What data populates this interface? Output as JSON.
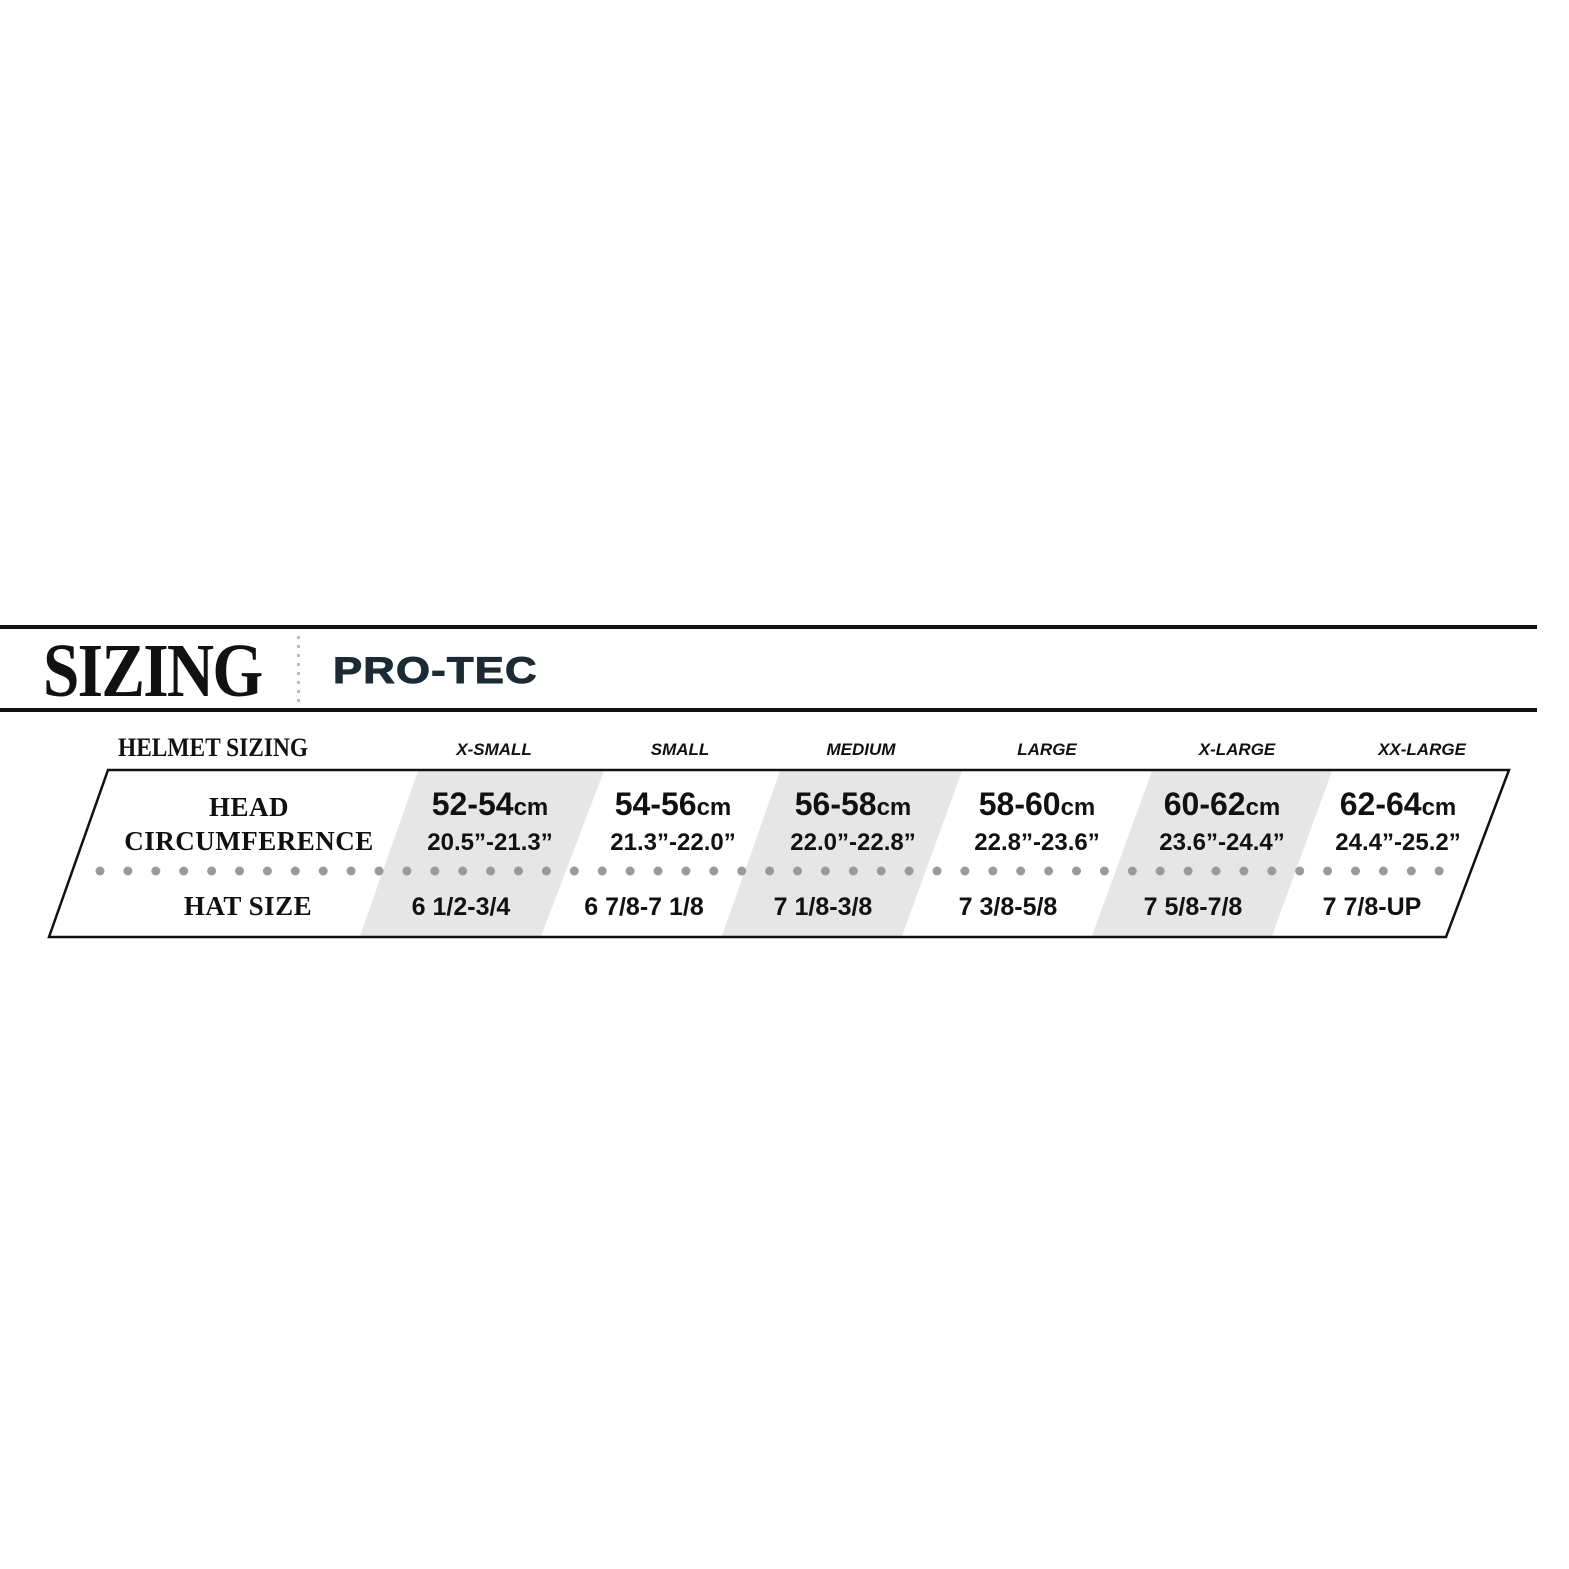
{
  "header": {
    "title": "SIZING",
    "brand_logo": "PRO-TEC"
  },
  "table": {
    "heading": "HELMET SIZING",
    "row_labels": {
      "head_line1": "HEAD",
      "head_line2": "CIRCUMFERENCE",
      "hat": "HAT SIZE"
    },
    "unit_cm": "cm",
    "sizes": [
      {
        "label": "X-SMALL",
        "cm": "52-54",
        "inches": "20.5”-21.3”",
        "hat": "6 1/2-3/4",
        "shaded": true
      },
      {
        "label": "SMALL",
        "cm": "54-56",
        "inches": "21.3”-22.0”",
        "hat": "6 7/8-7 1/8",
        "shaded": false
      },
      {
        "label": "MEDIUM",
        "cm": "56-58",
        "inches": "22.0”-22.8”",
        "hat": "7 1/8-3/8",
        "shaded": true
      },
      {
        "label": "LARGE",
        "cm": "58-60",
        "inches": "22.8”-23.6”",
        "hat": "7 3/8-5/8",
        "shaded": false
      },
      {
        "label": "X-LARGE",
        "cm": "60-62",
        "inches": "23.6”-24.4”",
        "hat": "7 5/8-7/8",
        "shaded": true
      },
      {
        "label": "XX-LARGE",
        "cm": "62-64",
        "inches": "24.4”-25.2”",
        "hat": "7 7/8-UP",
        "shaded": false
      }
    ]
  },
  "colors": {
    "shade": "#e6e6e6",
    "dots": "#9a9a9a",
    "logo": "#1c2b33",
    "rule": "#111111"
  }
}
